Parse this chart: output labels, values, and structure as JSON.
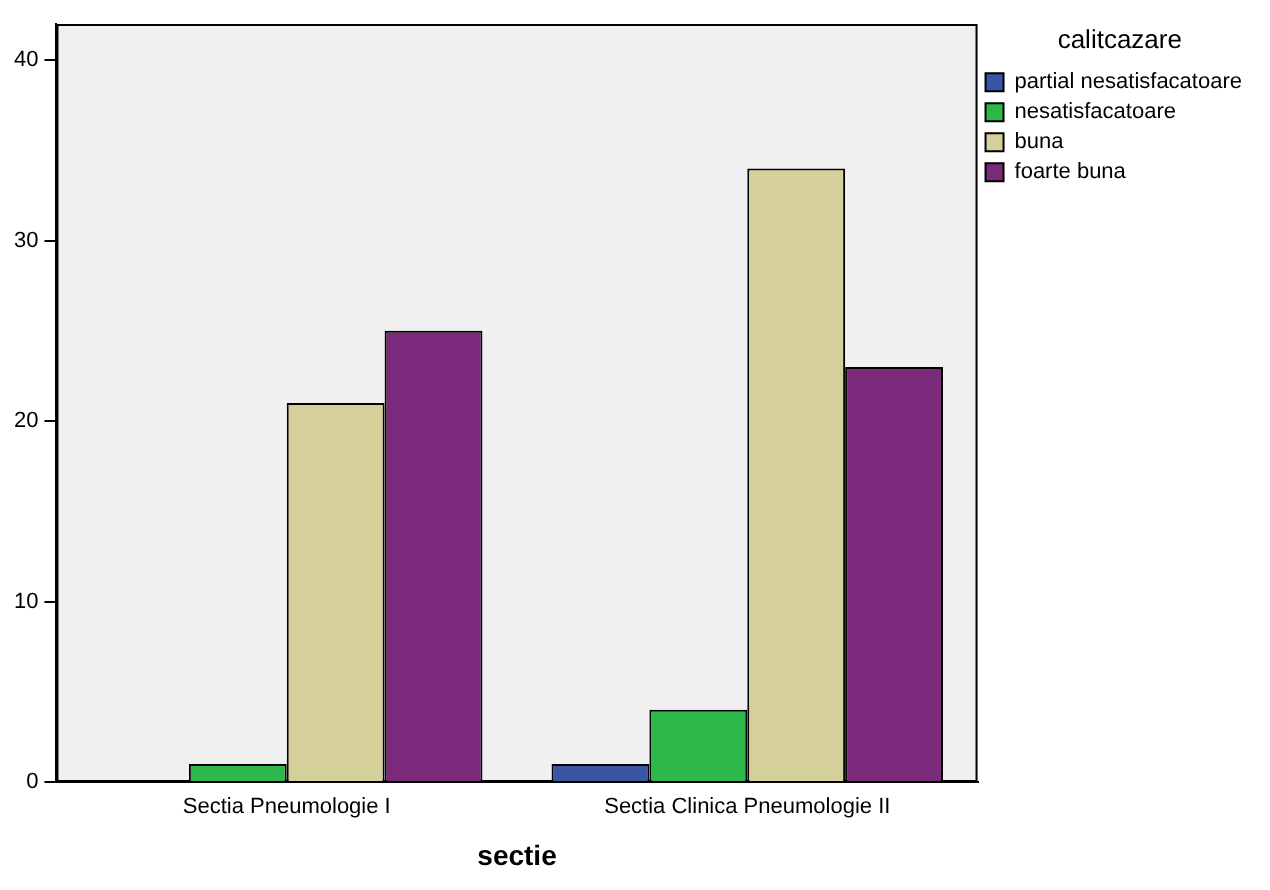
{
  "chart_data": {
    "type": "bar",
    "xlabel": "sectie",
    "legend_title": "calitcazare",
    "legend": "top right",
    "grid": false,
    "categories": [
      "Sectia Pneumologie I",
      "Sectia Clinica Pneumologie II"
    ],
    "series": [
      {
        "name": "partial nesatisfacatoare",
        "color": "#3a55a4",
        "values": [
          0,
          1
        ]
      },
      {
        "name": "nesatisfacatoare",
        "color": "#2db84a",
        "values": [
          1,
          4
        ]
      },
      {
        "name": "buna",
        "color": "#d5d09a",
        "values": [
          21,
          34
        ]
      },
      {
        "name": "foarte buna",
        "color": "#7b2a7b",
        "values": [
          25,
          23
        ]
      }
    ],
    "ylim": [
      0,
      42
    ],
    "yticks": [
      0,
      10,
      20,
      30,
      40
    ]
  }
}
